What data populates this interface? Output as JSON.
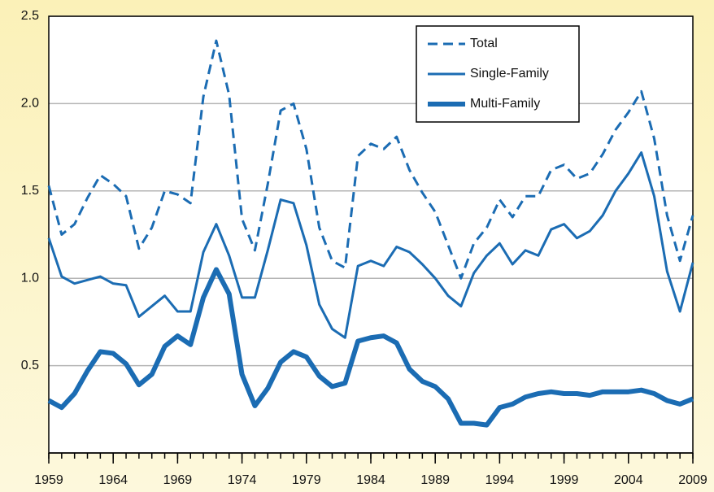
{
  "chart_data": {
    "type": "line",
    "x": [
      1959,
      1960,
      1961,
      1962,
      1963,
      1964,
      1965,
      1966,
      1967,
      1968,
      1969,
      1970,
      1971,
      1972,
      1973,
      1974,
      1975,
      1976,
      1977,
      1978,
      1979,
      1980,
      1981,
      1982,
      1983,
      1984,
      1985,
      1986,
      1987,
      1988,
      1989,
      1990,
      1991,
      1992,
      1993,
      1994,
      1995,
      1996,
      1997,
      1998,
      1999,
      2000,
      2001,
      2002,
      2003,
      2004,
      2005,
      2006,
      2007,
      2008,
      2009
    ],
    "series": [
      {
        "name": "Total",
        "color": "#1b6cb3",
        "dash": true,
        "width": 3,
        "values": [
          1.53,
          1.25,
          1.31,
          1.46,
          1.59,
          1.54,
          1.47,
          1.17,
          1.29,
          1.5,
          1.48,
          1.43,
          2.04,
          2.36,
          2.05,
          1.34,
          1.16,
          1.54,
          1.96,
          2.0,
          1.74,
          1.29,
          1.1,
          1.06,
          1.7,
          1.77,
          1.74,
          1.81,
          1.62,
          1.49,
          1.38,
          1.19,
          1.0,
          1.2,
          1.29,
          1.45,
          1.35,
          1.47,
          1.47,
          1.62,
          1.65,
          1.57,
          1.6,
          1.71,
          1.85,
          1.95,
          2.07,
          1.8,
          1.36,
          1.1,
          1.36
        ]
      },
      {
        "name": "Single-Family",
        "color": "#1b6cb3",
        "dash": false,
        "width": 3,
        "values": [
          1.23,
          1.01,
          0.97,
          0.99,
          1.01,
          0.97,
          0.96,
          0.78,
          0.84,
          0.9,
          0.81,
          0.81,
          1.15,
          1.31,
          1.13,
          0.89,
          0.89,
          1.16,
          1.45,
          1.43,
          1.19,
          0.85,
          0.71,
          0.66,
          1.07,
          1.1,
          1.07,
          1.18,
          1.15,
          1.08,
          1.0,
          0.9,
          0.84,
          1.03,
          1.13,
          1.2,
          1.08,
          1.16,
          1.13,
          1.28,
          1.31,
          1.23,
          1.27,
          1.36,
          1.5,
          1.6,
          1.72,
          1.47,
          1.04,
          0.81,
          1.09
        ]
      },
      {
        "name": "Multi-Family",
        "color": "#1b6cb3",
        "dash": false,
        "width": 6,
        "values": [
          0.3,
          0.26,
          0.34,
          0.47,
          0.58,
          0.57,
          0.51,
          0.39,
          0.45,
          0.61,
          0.67,
          0.62,
          0.89,
          1.05,
          0.91,
          0.45,
          0.27,
          0.37,
          0.52,
          0.58,
          0.55,
          0.44,
          0.38,
          0.4,
          0.64,
          0.66,
          0.67,
          0.63,
          0.48,
          0.41,
          0.38,
          0.31,
          0.17,
          0.17,
          0.16,
          0.26,
          0.28,
          0.32,
          0.34,
          0.35,
          0.34,
          0.34,
          0.33,
          0.35,
          0.35,
          0.35,
          0.36,
          0.34,
          0.3,
          0.28,
          0.31
        ]
      }
    ],
    "xlim": [
      1959,
      2009
    ],
    "xticks": [
      1959,
      1964,
      1969,
      1974,
      1979,
      1984,
      1989,
      1994,
      1999,
      2004,
      2009
    ],
    "ylim": [
      0,
      2.5
    ],
    "yticks": [
      0.5,
      {
        "value": 1,
        "label": "1.0"
      },
      1.5,
      {
        "value": 2,
        "label": "2.0"
      },
      2.5
    ],
    "grid": true,
    "legend": "upper right"
  }
}
